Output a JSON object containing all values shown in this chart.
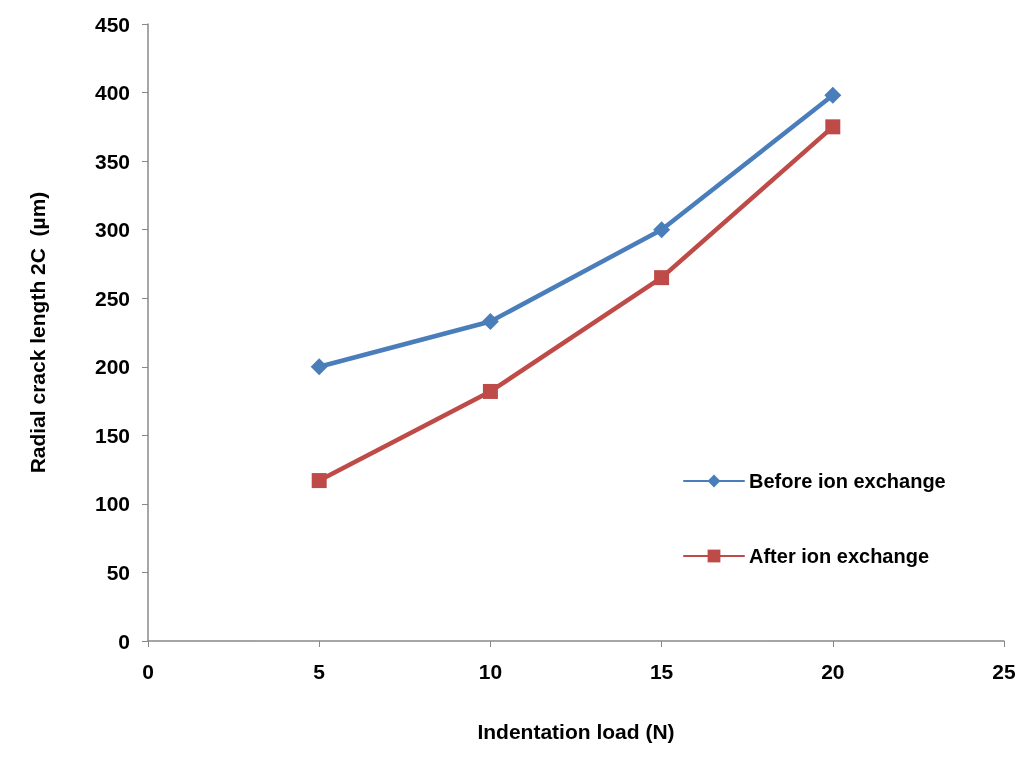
{
  "chart_data": {
    "type": "line",
    "xlabel": "Indentation load (N)",
    "ylabel": "Radial crack length 2C  (µm)",
    "x": [
      5,
      10,
      15,
      20
    ],
    "series": [
      {
        "name": "Before ion exchange",
        "color": "#4a7ebb",
        "values": [
          200,
          233,
          300,
          398
        ],
        "marker": "diamond"
      },
      {
        "name": "After ion exchange",
        "color": "#be4b48",
        "values": [
          117,
          182,
          265,
          375
        ],
        "marker": "square"
      }
    ],
    "xlim": [
      0,
      25
    ],
    "xticks": [
      0,
      5,
      10,
      15,
      20,
      25
    ],
    "ylim": [
      0,
      450
    ],
    "yticks": [
      0,
      50,
      100,
      150,
      200,
      250,
      300,
      350,
      400,
      450
    ],
    "grid": false,
    "legend": "right",
    "line_style": "solid"
  }
}
